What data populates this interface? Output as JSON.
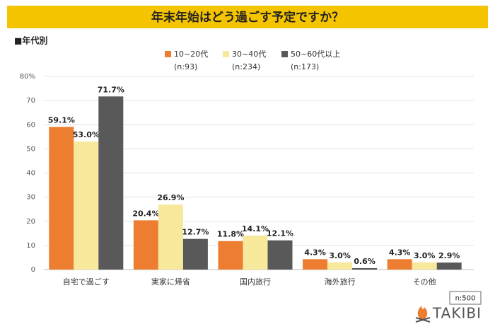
{
  "chart_data": {
    "type": "bar",
    "title": "年末年始はどう過ごす予定ですか？",
    "subtitle": "■年代別",
    "categories": [
      "自宅で過ごす",
      "実家に帰省",
      "国内旅行",
      "海外旅行",
      "その他"
    ],
    "series": [
      {
        "name": "10~20代",
        "sample": "(n:93)",
        "color": "#ED7D31",
        "values": [
          59.1,
          20.4,
          11.8,
          4.3,
          4.3
        ],
        "value_labels": [
          "59.1%",
          "20.4%",
          "11.8%",
          "4.3%",
          "4.3%"
        ]
      },
      {
        "name": "30~40代",
        "sample": "(n:234)",
        "color": "#F8E89C",
        "values": [
          53.0,
          26.9,
          14.1,
          3.0,
          3.0
        ],
        "value_labels": [
          "53.0%",
          "26.9%",
          "14.1%",
          "3.0%",
          "3.0%"
        ]
      },
      {
        "name": "50~60代以上",
        "sample": "(n:173)",
        "color": "#595959",
        "values": [
          71.7,
          12.7,
          12.1,
          0.6,
          2.9
        ],
        "value_labels": [
          "71.7%",
          "12.7%",
          "12.1%",
          "0.6%",
          "2.9%"
        ]
      }
    ],
    "ylim": [
      0,
      80
    ],
    "yticks": [
      0,
      10,
      20,
      30,
      40,
      50,
      60,
      70,
      {
        "value": 80,
        "label": "80%"
      }
    ],
    "grid": true,
    "note": "n:500",
    "brand": "TAKIBI"
  }
}
